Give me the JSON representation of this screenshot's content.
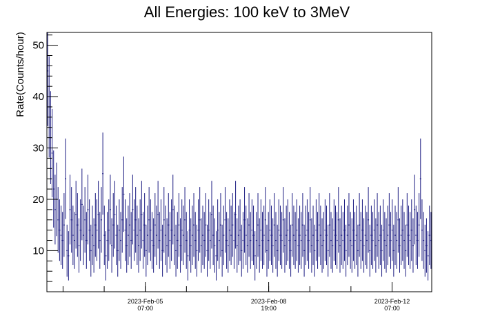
{
  "chart_data": {
    "type": "scatter",
    "title": "All Energies:  100 keV to 3MeV",
    "xlabel": "",
    "ylabel": "Rate(Counts/hour)",
    "ylim": [
      2,
      52.5
    ],
    "y_ticks": [
      10,
      20,
      30,
      40,
      50
    ],
    "y_minor_step": 2,
    "x_range_hours": [
      0,
      262
    ],
    "x_major_tick_labels": [
      {
        "line1": "2023-Feb-05",
        "line2": "07:00",
        "x_hours": 67
      },
      {
        "line1": "2023-Feb-08",
        "line2": "19:00",
        "x_hours": 151
      },
      {
        "line1": "2023-Feb-12",
        "line2": "07:00",
        "x_hours": 235
      }
    ],
    "x_minor_step_hours": 28,
    "grid": false,
    "legend": "none",
    "colors": {
      "points": "#1a1a80",
      "frame": "#000000"
    },
    "series": [
      {
        "marker": "point-with-error-bars",
        "values": [
          45,
          38,
          32,
          29,
          22,
          18,
          20,
          16,
          14,
          13,
          12,
          15,
          24,
          10,
          9,
          18,
          16,
          13,
          12,
          17,
          15,
          11,
          14,
          19,
          13,
          16,
          12,
          18,
          14,
          10,
          13,
          11,
          15,
          14,
          17,
          12,
          16,
          25,
          13,
          9,
          12,
          14,
          18,
          11,
          15,
          17,
          13,
          10,
          14,
          12,
          16,
          21,
          14,
          11,
          13,
          15,
          12,
          18,
          14,
          16,
          13,
          11,
          14,
          17,
          12,
          15,
          10,
          13,
          16,
          14,
          12,
          11,
          15,
          13,
          17,
          12,
          14,
          10,
          16,
          13,
          11,
          15,
          12,
          14,
          18,
          13,
          10,
          12,
          15,
          11,
          14,
          13,
          16,
          12,
          9,
          14,
          11,
          13,
          15,
          12,
          10,
          14,
          16,
          11,
          13,
          12,
          15,
          10,
          14,
          12,
          17,
          13,
          11,
          9,
          14,
          12,
          15,
          10,
          13,
          16,
          12,
          11,
          14,
          13,
          15,
          12,
          17,
          11,
          13,
          14,
          10,
          12,
          16,
          13,
          11,
          15,
          12,
          14,
          13,
          9,
          12,
          15,
          11,
          14,
          12,
          13,
          16,
          10,
          12,
          14,
          13,
          11,
          15,
          12,
          10,
          14,
          13,
          12,
          16,
          11,
          13,
          14,
          12,
          10,
          15,
          13,
          12,
          14,
          11,
          13,
          12,
          15,
          10,
          13,
          14,
          12,
          16,
          11,
          13,
          10,
          14,
          12,
          15,
          13,
          11,
          12,
          14,
          13,
          10,
          15,
          12,
          11,
          14,
          13,
          12,
          16,
          11,
          13,
          12,
          14,
          10,
          13,
          15,
          12,
          11,
          14,
          12,
          13,
          10,
          15,
          12,
          14,
          11,
          13,
          12,
          16,
          10,
          13,
          12,
          14,
          11,
          15,
          12,
          13,
          10,
          14,
          12,
          11,
          13,
          15,
          12,
          14,
          10,
          13,
          12,
          16,
          11,
          13,
          14,
          12,
          10,
          15,
          13,
          12,
          14,
          11,
          18,
          13,
          12,
          15,
          24,
          14,
          12,
          10,
          11,
          9,
          13,
          12
        ]
      }
    ]
  }
}
